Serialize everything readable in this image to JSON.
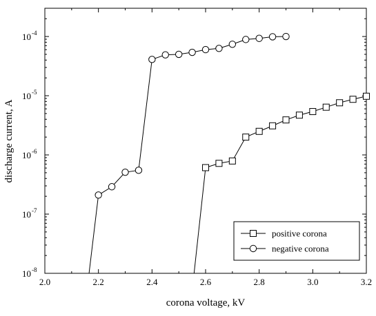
{
  "chart_data": {
    "type": "line",
    "xlabel": "corona voltage, kV",
    "ylabel": "discharge current, A",
    "xlim": [
      2.0,
      3.2
    ],
    "ylim": [
      1e-08,
      0.0003
    ],
    "yscale": "log",
    "x_ticks": [
      "2.0",
      "2.2",
      "2.4",
      "2.6",
      "2.8",
      "3.0",
      "3.2"
    ],
    "y_ticks": [
      {
        "base": "10",
        "exp": "-8"
      },
      {
        "base": "10",
        "exp": "-7"
      },
      {
        "base": "10",
        "exp": "-6"
      },
      {
        "base": "10",
        "exp": "-5"
      },
      {
        "base": "10",
        "exp": "-4"
      }
    ],
    "legend_position": "bottom-right",
    "series": [
      {
        "name": "positive corona",
        "marker": "square",
        "x": [
          2.557,
          2.6,
          2.65,
          2.7,
          2.75,
          2.8,
          2.85,
          2.9,
          2.95,
          3.0,
          3.05,
          3.1,
          3.15,
          3.2
        ],
        "y": [
          1e-08,
          6.1e-07,
          7.2e-07,
          7.9e-07,
          2e-06,
          2.5e-06,
          3.1e-06,
          3.9e-06,
          4.7e-06,
          5.4e-06,
          6.4e-06,
          7.6e-06,
          8.7e-06,
          9.8e-06
        ],
        "marked": [
          false,
          true,
          true,
          true,
          true,
          true,
          true,
          true,
          true,
          true,
          true,
          true,
          true,
          true
        ]
      },
      {
        "name": "negative corona",
        "marker": "circle",
        "x": [
          2.165,
          2.2,
          2.25,
          2.3,
          2.35,
          2.4,
          2.45,
          2.5,
          2.55,
          2.6,
          2.65,
          2.7,
          2.75,
          2.8,
          2.85,
          2.9
        ],
        "y": [
          1e-08,
          2.1e-07,
          2.9e-07,
          5.1e-07,
          5.5e-07,
          4.1e-05,
          4.9e-05,
          5e-05,
          5.4e-05,
          6e-05,
          6.3e-05,
          7.4e-05,
          8.9e-05,
          9.3e-05,
          9.9e-05,
          0.0001
        ],
        "marked": [
          false,
          true,
          true,
          true,
          true,
          true,
          true,
          true,
          true,
          true,
          true,
          true,
          true,
          true,
          true,
          true
        ]
      }
    ]
  }
}
